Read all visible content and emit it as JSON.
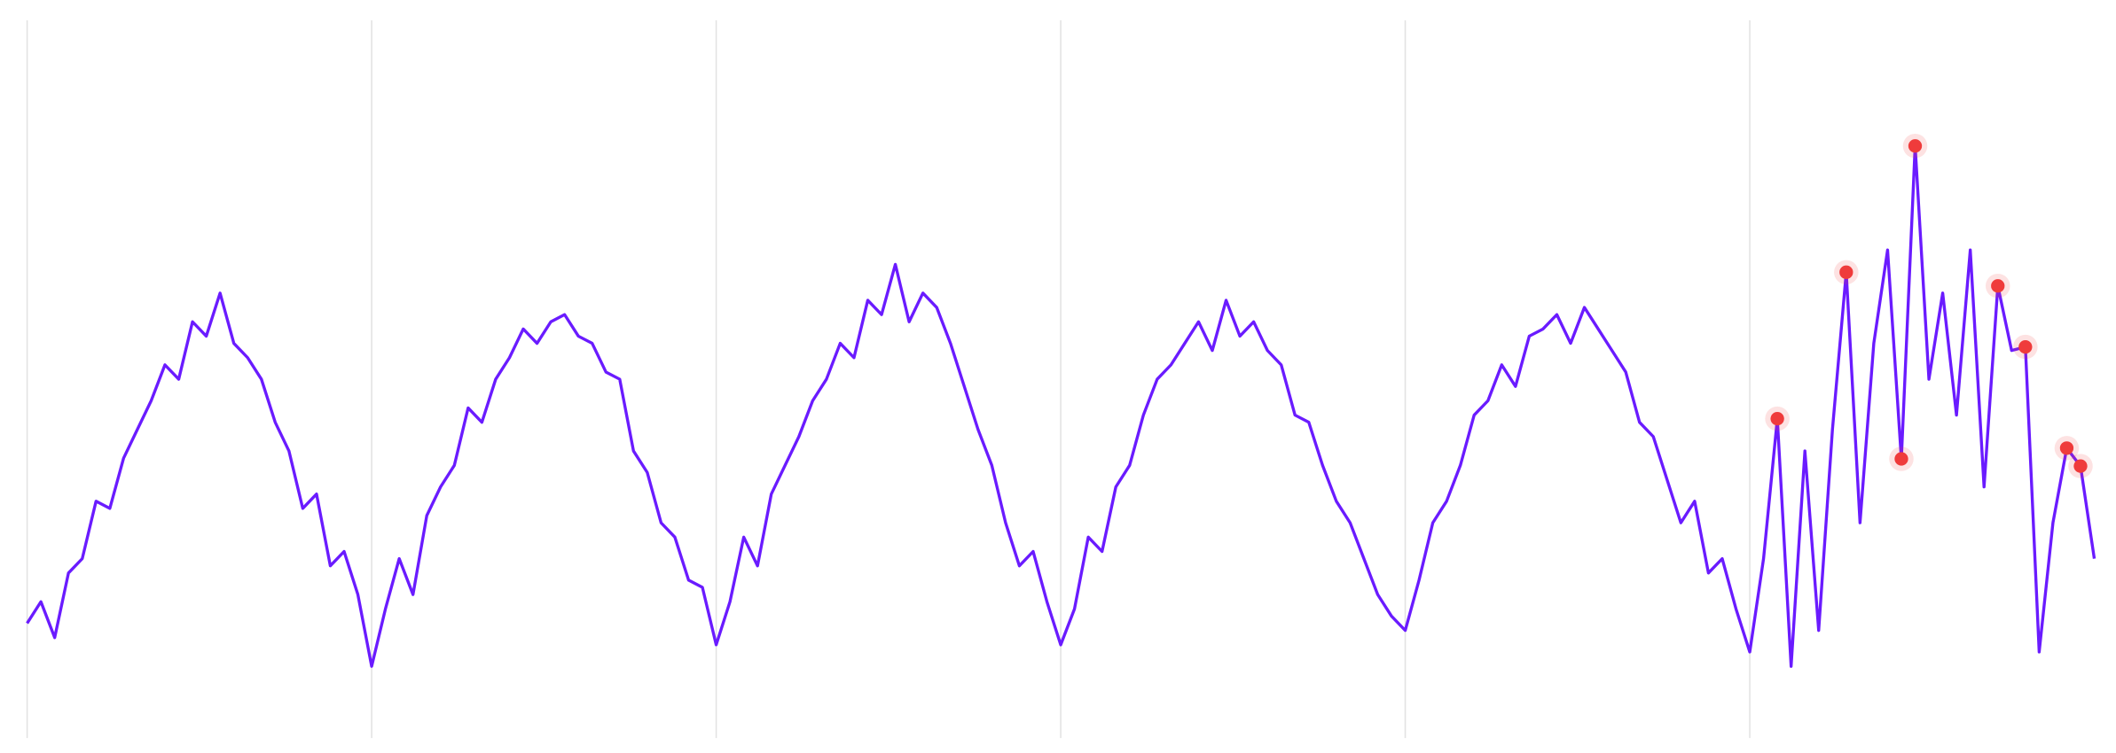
{
  "chart_data": {
    "type": "line",
    "xlim": [
      0,
      150
    ],
    "ylim": [
      0,
      100
    ],
    "xticks": [
      0,
      25,
      50,
      75,
      100,
      125
    ],
    "grid": true,
    "series": [
      {
        "color": "#6a1bff",
        "x": [
          0,
          1,
          2,
          3,
          4,
          5,
          6,
          7,
          8,
          9,
          10,
          11,
          12,
          13,
          14,
          15,
          16,
          17,
          18,
          19,
          20,
          21,
          22,
          23,
          24,
          25,
          26,
          27,
          28,
          29,
          30,
          31,
          32,
          33,
          34,
          35,
          36,
          37,
          38,
          39,
          40,
          41,
          42,
          43,
          44,
          45,
          46,
          47,
          48,
          49,
          50,
          51,
          52,
          53,
          54,
          55,
          56,
          57,
          58,
          59,
          60,
          61,
          62,
          63,
          64,
          65,
          66,
          67,
          68,
          69,
          70,
          71,
          72,
          73,
          74,
          75,
          76,
          77,
          78,
          79,
          80,
          81,
          82,
          83,
          84,
          85,
          86,
          87,
          88,
          89,
          90,
          91,
          92,
          93,
          94,
          95,
          96,
          97,
          98,
          99,
          100,
          101,
          102,
          103,
          104,
          105,
          106,
          107,
          108,
          109,
          110,
          111,
          112,
          113,
          114,
          115,
          116,
          117,
          118,
          119,
          120,
          121,
          122,
          123,
          124,
          125,
          126,
          127,
          128,
          129,
          130,
          131,
          132,
          133,
          134,
          135,
          136,
          137,
          138,
          139,
          140,
          141,
          142,
          143,
          144,
          145,
          146,
          147,
          148,
          149,
          150
        ],
        "values": [
          16,
          19,
          14,
          23,
          25,
          33,
          32,
          39,
          43,
          47,
          52,
          50,
          58,
          56,
          62,
          55,
          53,
          50,
          44,
          40,
          32,
          34,
          24,
          26,
          20,
          10,
          18,
          25,
          20,
          31,
          35,
          38,
          46,
          44,
          50,
          53,
          57,
          55,
          58,
          59,
          56,
          55,
          51,
          50,
          40,
          37,
          30,
          28,
          22,
          21,
          13,
          19,
          28,
          24,
          34,
          38,
          42,
          47,
          50,
          55,
          53,
          61,
          59,
          66,
          58,
          62,
          60,
          55,
          49,
          43,
          38,
          30,
          24,
          26,
          19,
          13,
          18,
          28,
          26,
          35,
          38,
          45,
          50,
          52,
          55,
          58,
          54,
          61,
          56,
          58,
          54,
          52,
          45,
          44,
          38,
          33,
          30,
          25,
          20,
          17,
          15,
          22,
          30,
          33,
          38,
          45,
          47,
          52,
          49,
          56,
          57,
          59,
          55,
          60,
          57,
          54,
          51,
          44,
          42,
          36,
          30,
          33,
          23,
          25,
          18,
          12,
          25,
          44.5,
          10,
          40,
          15,
          43,
          64.9,
          30,
          55,
          68,
          38.9,
          82.5,
          50,
          62,
          45,
          68,
          35,
          63,
          54,
          54.5,
          12,
          30,
          40.4,
          37.9,
          25
        ]
      },
      {
        "type": "scatter",
        "color": "#ef3b3b",
        "x": [
          127,
          132,
          136,
          137,
          143,
          145,
          148,
          149
        ],
        "values": [
          44.5,
          64.9,
          38.9,
          82.5,
          63,
          54.5,
          40.4,
          37.9
        ]
      }
    ]
  }
}
